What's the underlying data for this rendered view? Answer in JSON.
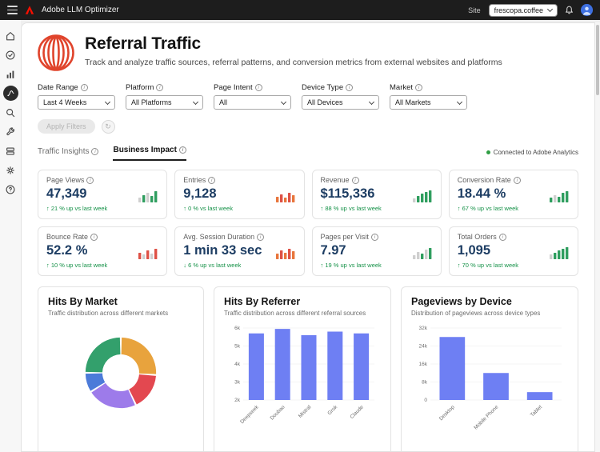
{
  "topbar": {
    "app_title": "Adobe LLM Optimizer",
    "site_label": "Site",
    "site_value": "frescopa.coffee"
  },
  "header": {
    "title": "Referral Traffic",
    "subtitle": "Track and analyze traffic sources, referral patterns, and conversion metrics from external websites and platforms"
  },
  "filters": [
    {
      "label": "Date Range",
      "value": "Last 4 Weeks"
    },
    {
      "label": "Platform",
      "value": "All Platforms"
    },
    {
      "label": "Page Intent",
      "value": "All"
    },
    {
      "label": "Device Type",
      "value": "All Devices"
    },
    {
      "label": "Market",
      "value": "All Markets"
    }
  ],
  "actions": {
    "apply_label": "Apply Filters"
  },
  "tabs": [
    {
      "label": "Traffic Insights",
      "active": false
    },
    {
      "label": "Business Impact",
      "active": true
    }
  ],
  "connection_status": "Connected to Adobe Analytics",
  "metrics": [
    {
      "label": "Page Views",
      "value": "47,349",
      "trend": "↑ 21 % up vs last week",
      "bar_heights": [
        6,
        9,
        12,
        8,
        14
      ],
      "bar_colors": [
        "#CFCFCF",
        "#2F9E5F",
        "#CFCFCF",
        "#2F9E5F",
        "#2F9E5F"
      ]
    },
    {
      "label": "Entries",
      "value": "9,128",
      "trend": "↑ 0 % vs last week",
      "bar_heights": [
        7,
        10,
        6,
        12,
        9
      ],
      "bar_colors": [
        "#E8763C",
        "#DE5146",
        "#E8763C",
        "#DE5146",
        "#E8763C"
      ]
    },
    {
      "label": "Revenue",
      "value": "$115,336",
      "trend": "↑ 88 % up vs last week",
      "bar_heights": [
        5,
        8,
        11,
        13,
        15
      ],
      "bar_colors": [
        "#CFCFCF",
        "#2F9E5F",
        "#2F9E5F",
        "#2F9E5F",
        "#2F9E5F"
      ]
    },
    {
      "label": "Conversion Rate",
      "value": "18.44 %",
      "trend": "↑ 67 % up vs last week",
      "bar_heights": [
        6,
        9,
        7,
        12,
        14
      ],
      "bar_colors": [
        "#2F9E5F",
        "#CFCFCF",
        "#2F9E5F",
        "#2F9E5F",
        "#2F9E5F"
      ]
    },
    {
      "label": "Bounce Rate",
      "value": "52.2 %",
      "trend": "↑ 10 % up vs last week",
      "bar_heights": [
        8,
        6,
        11,
        7,
        13
      ],
      "bar_colors": [
        "#DE5146",
        "#CFCFCF",
        "#DE5146",
        "#CFCFCF",
        "#DE5146"
      ]
    },
    {
      "label": "Avg. Session Duration",
      "value": "1 min 33 sec",
      "trend": "↓ 6 % up vs last week",
      "bar_heights": [
        7,
        11,
        8,
        13,
        10
      ],
      "bar_colors": [
        "#E8763C",
        "#DE5146",
        "#E8763C",
        "#DE5146",
        "#E8763C"
      ]
    },
    {
      "label": "Pages per Visit",
      "value": "7.97",
      "trend": "↑ 19 % up vs last week",
      "bar_heights": [
        5,
        9,
        7,
        12,
        14
      ],
      "bar_colors": [
        "#CFCFCF",
        "#CFCFCF",
        "#2F9E5F",
        "#CFCFCF",
        "#2F9E5F"
      ]
    },
    {
      "label": "Total Orders",
      "value": "1,095",
      "trend": "↑ 70 % up vs last week",
      "bar_heights": [
        6,
        8,
        11,
        13,
        15
      ],
      "bar_colors": [
        "#CFCFCF",
        "#2F9E5F",
        "#2F9E5F",
        "#2F9E5F",
        "#2F9E5F"
      ]
    }
  ],
  "chart_data": [
    {
      "id": "hits-by-market",
      "type": "pie",
      "title": "Hits By Market",
      "subtitle": "Traffic distribution across different markets",
      "donut": true,
      "slices": [
        {
          "value": 26,
          "color": "#E8A33D"
        },
        {
          "value": 17,
          "color": "#E34850"
        },
        {
          "value": 23,
          "color": "#9D7BEA"
        },
        {
          "value": 9,
          "color": "#4C7BD9"
        },
        {
          "value": 25,
          "color": "#33A06C"
        }
      ]
    },
    {
      "id": "hits-by-referrer",
      "type": "bar",
      "title": "Hits By Referrer",
      "subtitle": "Traffic distribution across different referral sources",
      "categories": [
        "Deepseek",
        "Doubao",
        "Mistral",
        "Grok",
        "Claude"
      ],
      "values": [
        5700,
        5950,
        5600,
        5800,
        5700
      ],
      "yticks": [
        "6k",
        "5k",
        "4k",
        "3k",
        "2k"
      ],
      "ylim": [
        2000,
        6000
      ],
      "bar_color": "#6E7FF3",
      "legend": "none",
      "grid": false
    },
    {
      "id": "pageviews-by-device",
      "type": "bar",
      "title": "Pageviews by Device",
      "subtitle": "Distribution of pageviews across device types",
      "categories": [
        "Desktop",
        "Mobile Phone",
        "Tablet"
      ],
      "values": [
        28000,
        12000,
        3500
      ],
      "yticks": [
        "32k",
        "24k",
        "16k",
        "8k",
        "0"
      ],
      "ylim": [
        0,
        32000
      ],
      "bar_color": "#6E7FF3",
      "legend": "none",
      "grid": false
    }
  ],
  "sidebar": {
    "items": [
      {
        "icon": "home"
      },
      {
        "icon": "check-circle"
      },
      {
        "icon": "bar-chart"
      },
      {
        "icon": "referral-traffic",
        "active": true
      },
      {
        "icon": "search"
      },
      {
        "icon": "wrench"
      },
      {
        "icon": "cards"
      },
      {
        "icon": "gear"
      },
      {
        "icon": "help"
      }
    ]
  },
  "colors": {
    "adobe_red": "#FA0F00",
    "positive_green": "#149147",
    "connected_green": "#2F9E44",
    "chart_bar_blue": "#6E7FF3",
    "metric_value_navy": "#1d3d63",
    "topbar_bg": "#1d1d1d"
  }
}
